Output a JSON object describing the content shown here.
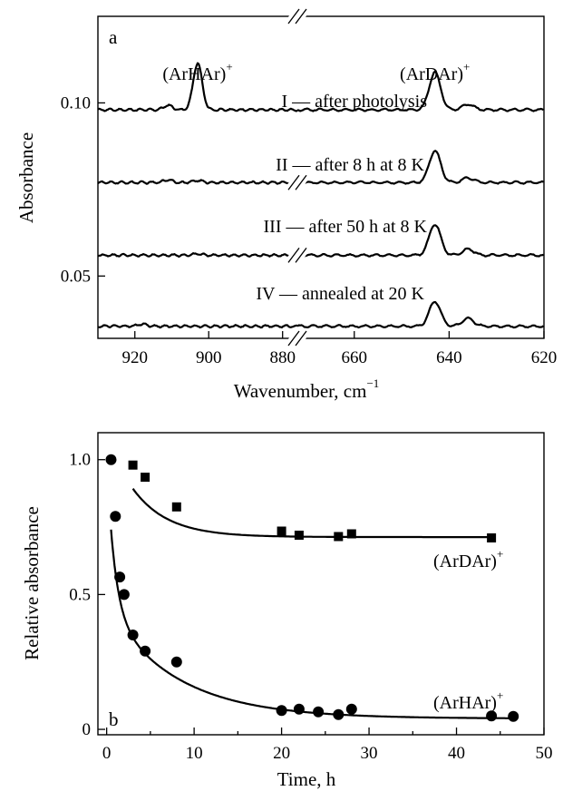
{
  "chart_data": [
    {
      "panel": "a",
      "type": "line",
      "xlabel": "Wavenumber, cm",
      "xlabel_superscript": "−1",
      "ylabel": "Absorbance",
      "x_segments": [
        {
          "range": [
            930,
            876
          ],
          "ticks": [
            920,
            900,
            880
          ]
        },
        {
          "range": [
            672,
            620
          ],
          "ticks": [
            660,
            640,
            620
          ]
        }
      ],
      "y_ticks": [
        {
          "value": 0.1,
          "label": "0.10"
        },
        {
          "value": 0.05,
          "label": "0.05"
        }
      ],
      "ylim": [
        0.032,
        0.125
      ],
      "peak_labels": [
        {
          "text": "(ArHAr)",
          "sup": "+",
          "x": 903
        },
        {
          "text": "(ArDAr)",
          "sup": "+",
          "x": 643
        }
      ],
      "series": [
        {
          "name": "I — after photolysis",
          "baseline": 0.098,
          "peaks": [
            {
              "x": 903,
              "h": 0.0135
            },
            {
              "x": 643,
              "h": 0.0108
            },
            {
              "x": 636,
              "h": 0.0016
            },
            {
              "x": 911,
              "h": 0.0013
            }
          ]
        },
        {
          "name": "II — after 8 h at 8 K",
          "baseline": 0.077,
          "peaks": [
            {
              "x": 903,
              "h": 0.0006
            },
            {
              "x": 643,
              "h": 0.0092
            },
            {
              "x": 636,
              "h": 0.0014
            },
            {
              "x": 911,
              "h": 0.0008
            }
          ]
        },
        {
          "name": "III — after 50 h at 8 K",
          "baseline": 0.056,
          "peaks": [
            {
              "x": 903,
              "h": 0.0004
            },
            {
              "x": 643,
              "h": 0.009
            },
            {
              "x": 636,
              "h": 0.0018
            }
          ]
        },
        {
          "name": "IV — annealed at 20 K",
          "baseline": 0.0355,
          "peaks": [
            {
              "x": 643,
              "h": 0.0072
            },
            {
              "x": 636,
              "h": 0.0022
            },
            {
              "x": 918,
              "h": 0.0006
            }
          ]
        }
      ]
    },
    {
      "panel": "b",
      "type": "scatter",
      "xlabel": "Time, h",
      "ylabel": "Relative absorbance",
      "xlim": [
        -1,
        50
      ],
      "ylim": [
        -0.02,
        1.1
      ],
      "x_ticks": [
        0,
        10,
        20,
        30,
        40,
        50
      ],
      "y_ticks": [
        {
          "value": 0,
          "label": "0"
        },
        {
          "value": 0.5,
          "label": "0.5"
        },
        {
          "value": 1.0,
          "label": "1.0"
        }
      ],
      "series": [
        {
          "name": "(ArDAr)",
          "name_sup": "+",
          "marker": "square",
          "points": [
            [
              3,
              0.98
            ],
            [
              4.4,
              0.935
            ],
            [
              8,
              0.825
            ],
            [
              20,
              0.735
            ],
            [
              22,
              0.72
            ],
            [
              26.5,
              0.715
            ],
            [
              28,
              0.725
            ],
            [
              44,
              0.71
            ]
          ],
          "fit": {
            "a": 0.713,
            "b": 0.38,
            "tau": 4.0
          }
        },
        {
          "name": "(ArHAr)",
          "name_sup": "+",
          "marker": "circle",
          "points": [
            [
              0.5,
              1.0
            ],
            [
              1.0,
              0.79
            ],
            [
              1.5,
              0.565
            ],
            [
              2.0,
              0.5
            ],
            [
              3.0,
              0.35
            ],
            [
              4.4,
              0.29
            ],
            [
              8,
              0.25
            ],
            [
              20,
              0.07
            ],
            [
              22,
              0.075
            ],
            [
              24.2,
              0.065
            ],
            [
              26.5,
              0.055
            ],
            [
              28,
              0.075
            ],
            [
              44,
              0.05
            ],
            [
              46.5,
              0.048
            ]
          ],
          "fit": {
            "c": 0.04,
            "a1": 0.55,
            "t1": 0.9,
            "a2": 0.41,
            "t2": 8.0
          }
        }
      ]
    }
  ]
}
